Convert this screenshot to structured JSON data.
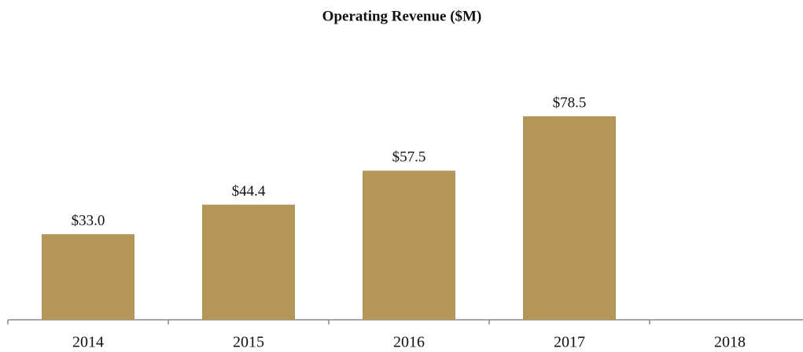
{
  "chart_data": {
    "type": "bar",
    "title": "Operating Revenue ($M)",
    "categories": [
      "2014",
      "2015",
      "2016",
      "2017",
      "2018"
    ],
    "values": [
      33.0,
      44.4,
      57.5,
      78.5,
      null
    ],
    "value_labels": [
      "$33.0",
      "$44.4",
      "$57.5",
      "$78.5",
      null
    ],
    "color": "#b39658"
  }
}
